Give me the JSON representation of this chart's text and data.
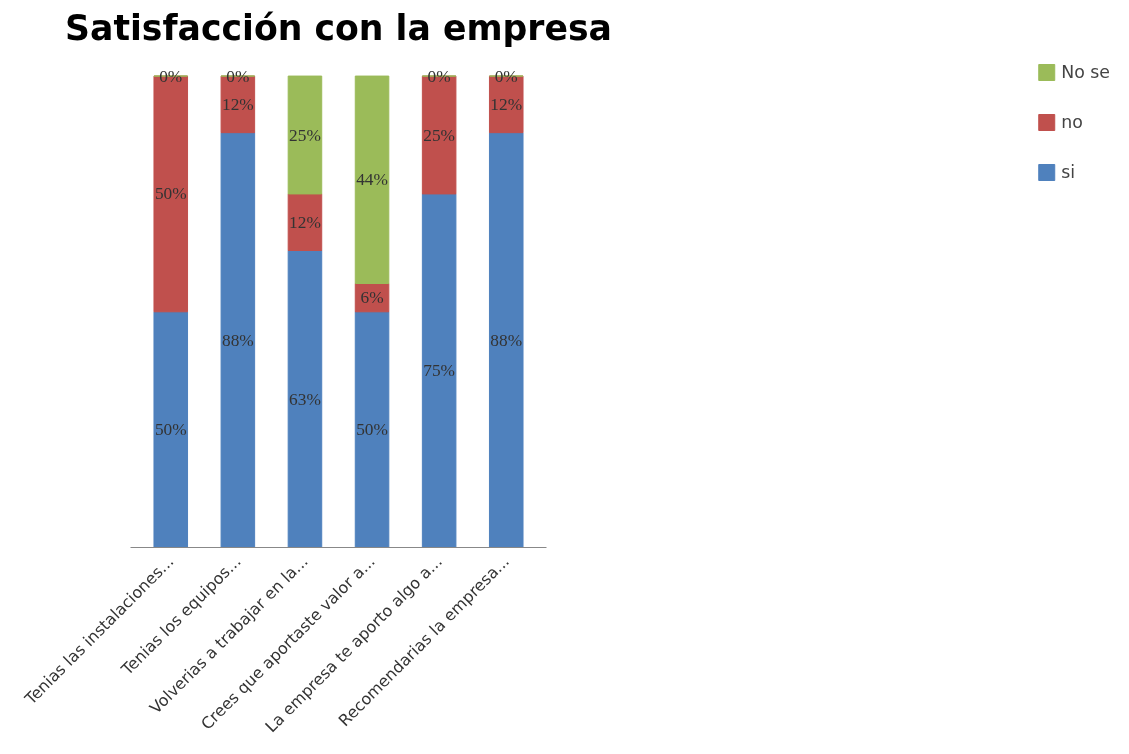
{
  "chart_data": {
    "type": "bar",
    "title": "Satisfacción con la empresa",
    "stacked": true,
    "categories": [
      "Tenias las instalaciones...",
      "Tenias los equipos...",
      "Volverias a trabajar en la...",
      "Crees que aportaste valor a...",
      "La empresa te aporto algo a...",
      "Recomendarias la empresa..."
    ],
    "series": [
      {
        "name": "si",
        "color": "#4f81bd",
        "values": [
          50,
          88,
          63,
          50,
          75,
          88
        ],
        "value_labels": [
          "50%",
          "88%",
          "63%",
          "50%",
          "75%",
          "88%"
        ]
      },
      {
        "name": "no",
        "color": "#c0504d",
        "values": [
          50,
          12,
          12,
          6,
          25,
          12
        ],
        "value_labels": [
          "50%",
          "12%",
          "12%",
          "6%",
          "25%",
          "12%"
        ]
      },
      {
        "name": "No se",
        "color": "#9bbb59",
        "values": [
          0,
          0,
          25,
          44,
          0,
          0
        ],
        "value_labels": [
          "0%",
          "0%",
          "25%",
          "44%",
          "0%",
          "0%"
        ]
      }
    ],
    "legend": "right",
    "grid": false,
    "tick_labels": "x"
  }
}
